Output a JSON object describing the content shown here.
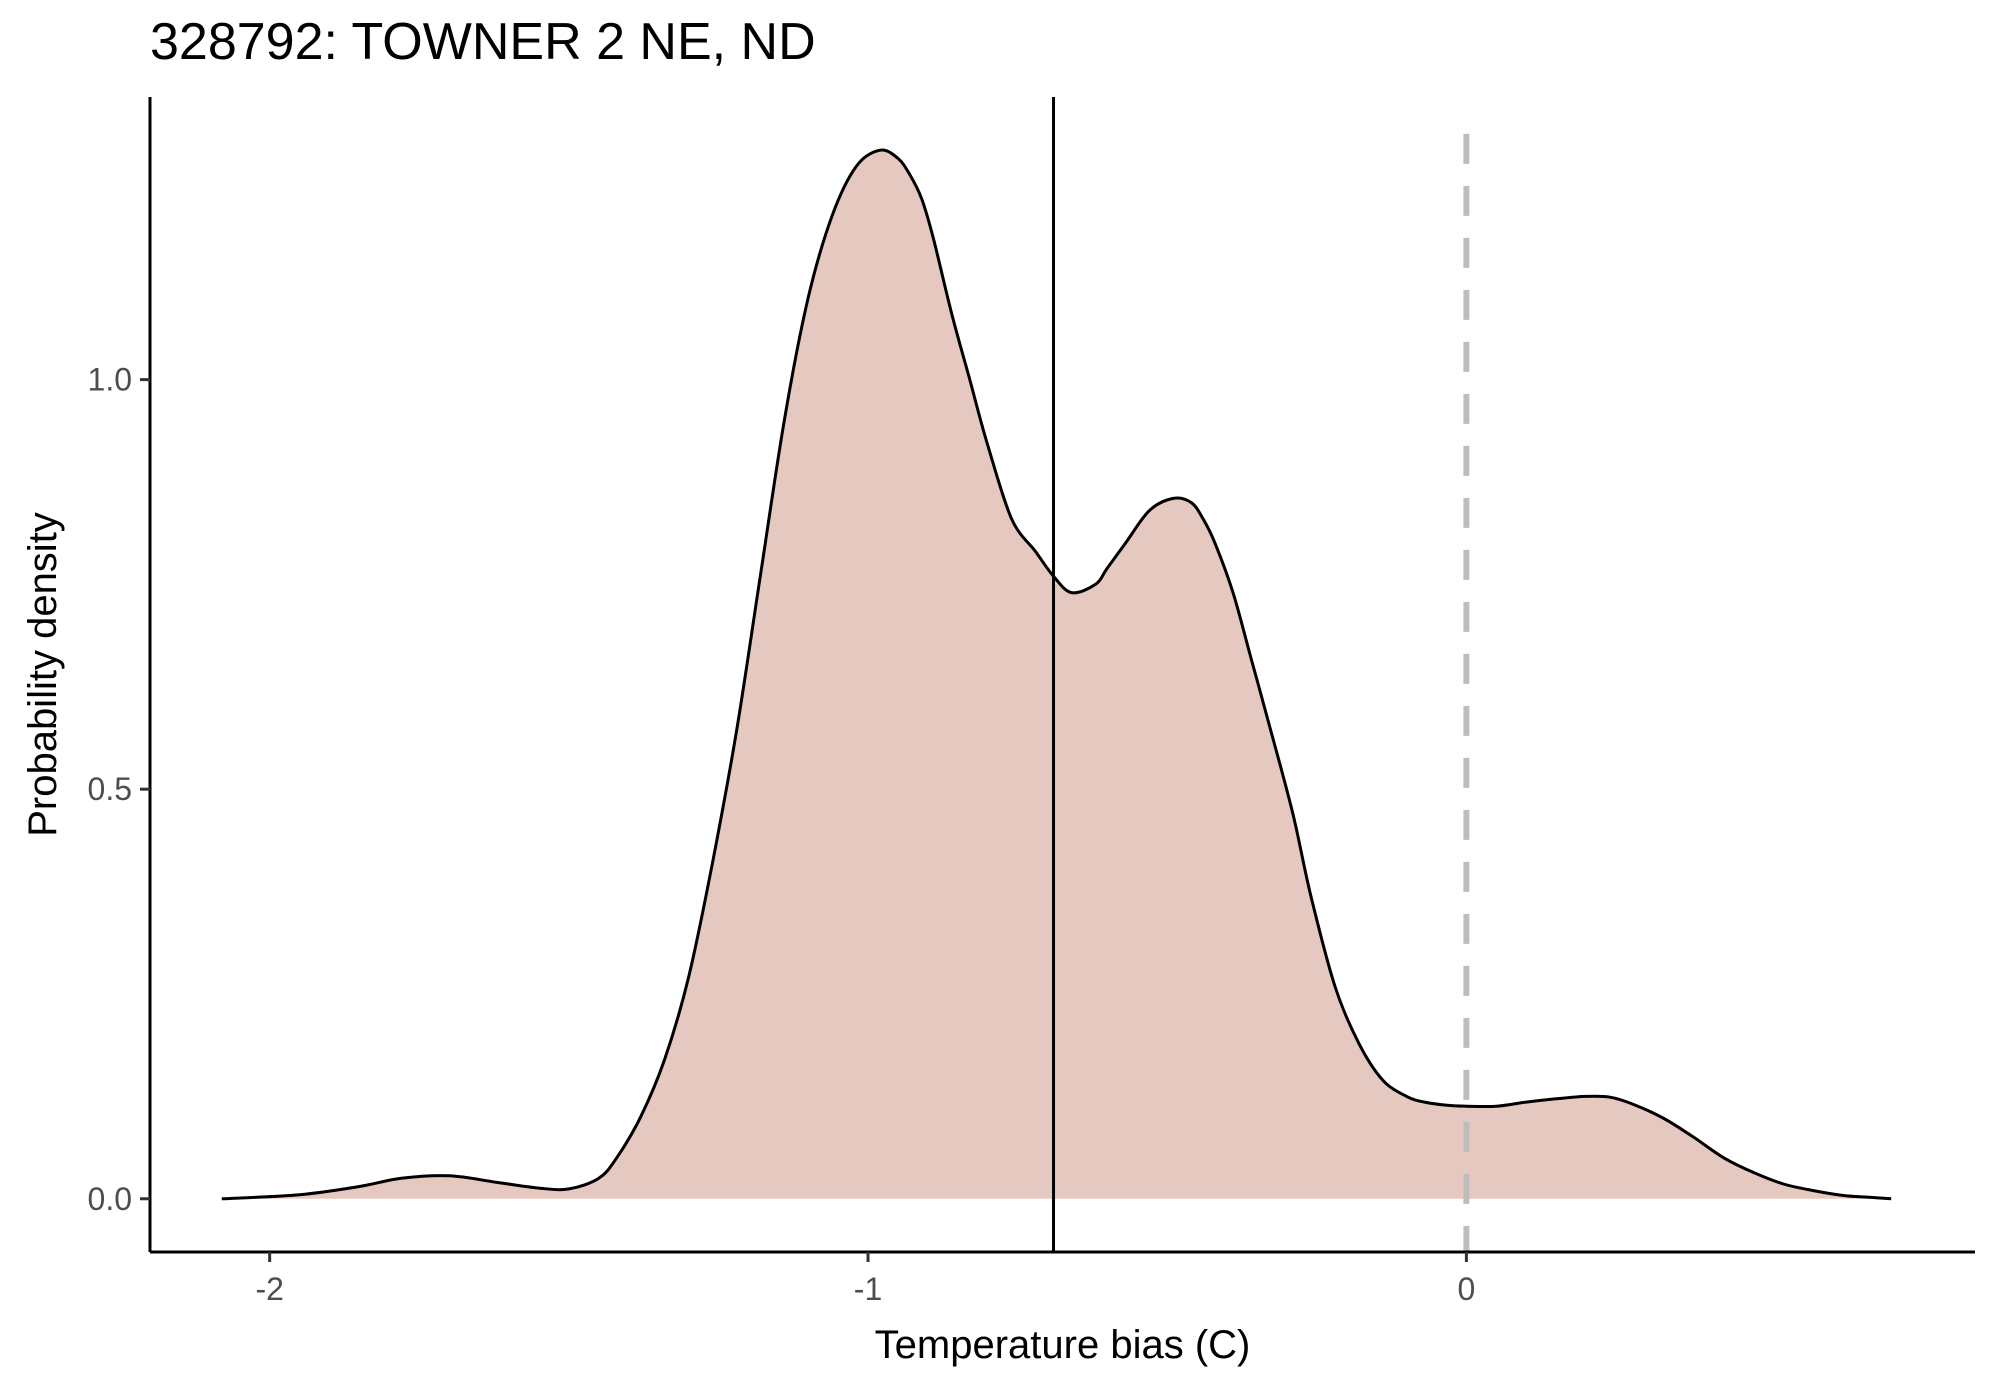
{
  "chart_data": {
    "type": "area",
    "title": "328792: TOWNER 2 NE, ND",
    "xlabel": "Temperature bias (C)",
    "ylabel": "Probability density",
    "xlim": [
      -2.2,
      0.85
    ],
    "ylim": [
      -0.065,
      1.345
    ],
    "x_ticks": [
      -2,
      -1,
      0
    ],
    "x_tick_labels": [
      "-2",
      "-1",
      "0"
    ],
    "y_ticks": [
      0.0,
      0.5,
      1.0
    ],
    "y_tick_labels": [
      "0.0",
      "0.5",
      "1.0"
    ],
    "grid": false,
    "fill_color": "#e5c8c0",
    "line_color": "#000000",
    "mean_line_x": -0.69,
    "zero_line_x": 0,
    "zero_line_color": "#bdbdbd",
    "series": [
      {
        "x": [
          -2.08,
          -1.95,
          -1.85,
          -1.78,
          -1.7,
          -1.62,
          -1.55,
          -1.5,
          -1.45,
          -1.42,
          -1.38,
          -1.34,
          -1.3,
          -1.26,
          -1.22,
          -1.18,
          -1.14,
          -1.1,
          -1.06,
          -1.02,
          -0.98,
          -0.95,
          -0.93,
          -0.91,
          -0.89,
          -0.86,
          -0.83,
          -0.8,
          -0.76,
          -0.72,
          -0.69,
          -0.66,
          -0.62,
          -0.6,
          -0.57,
          -0.53,
          -0.49,
          -0.46,
          -0.44,
          -0.42,
          -0.39,
          -0.36,
          -0.33,
          -0.29,
          -0.26,
          -0.22,
          -0.18,
          -0.14,
          -0.1,
          -0.07,
          -0.03,
          0.0,
          0.05,
          0.1,
          0.15,
          0.2,
          0.24,
          0.28,
          0.33,
          0.38,
          0.43,
          0.48,
          0.53,
          0.58,
          0.63,
          0.67,
          0.71
        ],
        "y": [
          0.0,
          0.005,
          0.015,
          0.025,
          0.028,
          0.02,
          0.013,
          0.012,
          0.025,
          0.05,
          0.1,
          0.17,
          0.27,
          0.41,
          0.57,
          0.76,
          0.95,
          1.1,
          1.2,
          1.26,
          1.28,
          1.27,
          1.25,
          1.22,
          1.17,
          1.08,
          1.0,
          0.92,
          0.83,
          0.79,
          0.76,
          0.74,
          0.75,
          0.77,
          0.8,
          0.84,
          0.855,
          0.85,
          0.83,
          0.8,
          0.74,
          0.66,
          0.58,
          0.47,
          0.37,
          0.26,
          0.19,
          0.145,
          0.125,
          0.118,
          0.114,
          0.113,
          0.113,
          0.118,
          0.122,
          0.125,
          0.124,
          0.115,
          0.098,
          0.075,
          0.05,
          0.032,
          0.018,
          0.01,
          0.004,
          0.002,
          0.0
        ]
      }
    ]
  }
}
